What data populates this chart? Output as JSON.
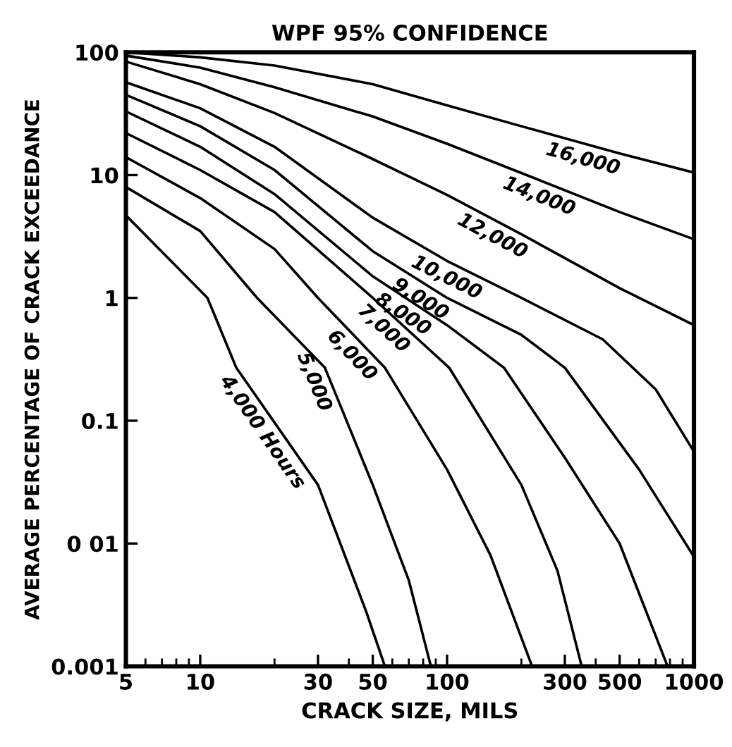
{
  "chart_data": {
    "type": "line",
    "title": "WPF 95% CONFIDENCE",
    "xlabel": "CRACK SIZE, MILS",
    "ylabel": "AVERAGE PERCENTAGE OF CRACK EXCEEDANCE",
    "log": "xy",
    "grid": false,
    "legend": false,
    "marker": "none",
    "line_style": "solid",
    "xlim": [
      5,
      1000
    ],
    "ylim": [
      0.001,
      100
    ],
    "xticks": [
      5,
      10,
      30,
      50,
      100,
      300,
      500,
      1000
    ],
    "yticks": [
      {
        "value": 0.001,
        "label": "0.001"
      },
      {
        "value": 0.01,
        "label": "0 01"
      },
      {
        "value": 0.1,
        "label": "0.1"
      },
      1,
      10,
      100
    ],
    "series": [
      {
        "name": "4,000 Hours",
        "color": "#000000",
        "x": [
          5,
          10.7,
          14,
          30,
          47,
          56
        ],
        "values": [
          4.7,
          1,
          0.27,
          0.03,
          0.0028,
          0.001
        ]
      },
      {
        "name": "5,000",
        "color": "#000000",
        "x": [
          5,
          10,
          17,
          32,
          50,
          70,
          86
        ],
        "values": [
          8,
          3.5,
          1,
          0.27,
          0.03,
          0.005,
          0.001
        ]
      },
      {
        "name": "6,000",
        "color": "#000000",
        "x": [
          5,
          10,
          20,
          30,
          56,
          100,
          150,
          221
        ],
        "values": [
          14,
          6.5,
          2.5,
          1,
          0.27,
          0.04,
          0.008,
          0.001
        ]
      },
      {
        "name": "7,000",
        "color": "#000000",
        "x": [
          5,
          10,
          20,
          50,
          102,
          200,
          280,
          351
        ],
        "values": [
          22,
          11,
          5,
          1,
          0.27,
          0.03,
          0.006,
          0.001
        ]
      },
      {
        "name": "8,000",
        "color": "#000000",
        "x": [
          5,
          10,
          20,
          50,
          100,
          170,
          300,
          500,
          782
        ],
        "values": [
          33,
          17,
          7,
          1.5,
          0.6,
          0.27,
          0.05,
          0.01,
          0.001
        ]
      },
      {
        "name": "9,000",
        "color": "#000000",
        "x": [
          5,
          10,
          20,
          50,
          100,
          200,
          300,
          600,
          1000
        ],
        "values": [
          45,
          25,
          11,
          2.4,
          1,
          0.5,
          0.27,
          0.04,
          0.0078
        ]
      },
      {
        "name": "10,000",
        "color": "#000000",
        "x": [
          5,
          10,
          20,
          50,
          100,
          200,
          427,
          700,
          1000
        ],
        "values": [
          57,
          35,
          17,
          4.5,
          2,
          1,
          0.46,
          0.18,
          0.056
        ]
      },
      {
        "name": "12,000",
        "color": "#000000",
        "x": [
          5,
          10,
          20,
          50,
          100,
          200,
          500,
          1000
        ],
        "values": [
          84,
          55,
          32,
          13.5,
          6.9,
          3.3,
          1.2,
          0.6
        ]
      },
      {
        "name": "14,000",
        "color": "#000000",
        "x": [
          5,
          10,
          20,
          50,
          100,
          200,
          500,
          1000
        ],
        "values": [
          94,
          75,
          52,
          30,
          18,
          10.4,
          5,
          3
        ]
      },
      {
        "name": "16,000",
        "color": "#000000",
        "x": [
          5,
          10,
          20,
          50,
          100,
          200,
          500,
          1000
        ],
        "values": [
          100,
          91,
          78,
          55,
          37,
          25,
          15,
          10.5
        ]
      }
    ]
  }
}
